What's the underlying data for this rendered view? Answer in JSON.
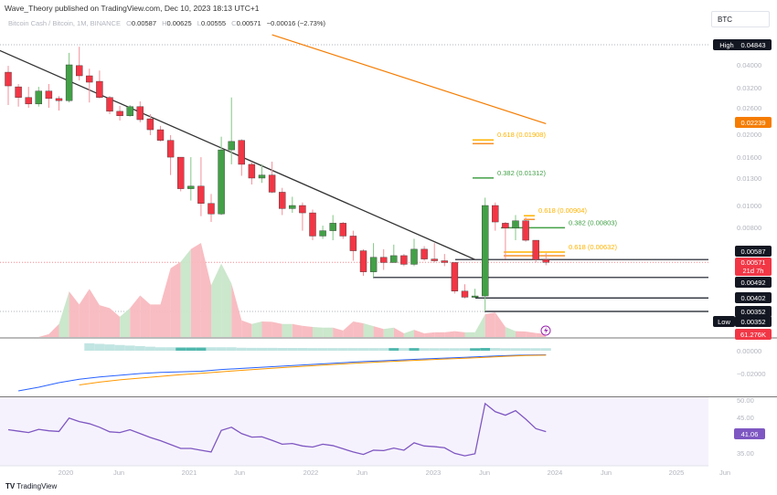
{
  "header": {
    "publisher": "Wave_Theory published on TradingView.com, Dec 10, 2023 18:13 UTC+1",
    "symbol": "Bitcoin Cash / Bitcoin, 1M, BINANCE",
    "open_key": "O",
    "open": "0.00587",
    "high_key": "H",
    "high": "0.00625",
    "low_key": "L",
    "low": "0.00555",
    "close_key": "C",
    "close": "0.00571",
    "change": "−0.00016 (−2.73%)"
  },
  "currency": "BTC",
  "footer": {
    "logo": "TradingView"
  },
  "colors": {
    "up": "#43a047",
    "down": "#f23645",
    "ma": "#f57c00",
    "fib_orange": "#ffb300",
    "fib_green": "#43a047",
    "rsi": "#7e57c2",
    "macd": "#2962ff",
    "signal": "#ff9800",
    "hist": "#b2dfdb",
    "hist_dark": "#26a69a"
  },
  "chart_data": {
    "type": "candlestick",
    "scale": "log",
    "dates": [
      "2019-07",
      "2019-08",
      "2019-09",
      "2019-10",
      "2019-11",
      "2019-12",
      "2020-01",
      "2020-02",
      "2020-03",
      "2020-04",
      "2020-05",
      "2020-06",
      "2020-07",
      "2020-08",
      "2020-09",
      "2020-10",
      "2020-11",
      "2020-12",
      "2021-01",
      "2021-02",
      "2021-03",
      "2021-04",
      "2021-05",
      "2021-06",
      "2021-07",
      "2021-08",
      "2021-09",
      "2021-10",
      "2021-11",
      "2021-12",
      "2022-01",
      "2022-02",
      "2022-03",
      "2022-04",
      "2022-05",
      "2022-06",
      "2022-07",
      "2022-08",
      "2022-09",
      "2022-10",
      "2022-11",
      "2022-12",
      "2023-01",
      "2023-02",
      "2023-03",
      "2023-04",
      "2023-05",
      "2023-06",
      "2023-07",
      "2023-08",
      "2023-09",
      "2023-10",
      "2023-11",
      "2023-12"
    ],
    "ohlc": [
      [
        0.0372,
        0.0396,
        0.0269,
        0.0325
      ],
      [
        0.0322,
        0.0331,
        0.0265,
        0.029
      ],
      [
        0.029,
        0.0322,
        0.0262,
        0.0272
      ],
      [
        0.0272,
        0.0322,
        0.0265,
        0.0309
      ],
      [
        0.0309,
        0.0331,
        0.0262,
        0.0287
      ],
      [
        0.0287,
        0.0294,
        0.0255,
        0.0281
      ],
      [
        0.0281,
        0.045,
        0.0276,
        0.04
      ],
      [
        0.0397,
        0.0478,
        0.0343,
        0.0359
      ],
      [
        0.0359,
        0.0385,
        0.0276,
        0.0337
      ],
      [
        0.034,
        0.0378,
        0.0287,
        0.029
      ],
      [
        0.029,
        0.0294,
        0.0246,
        0.0253
      ],
      [
        0.0253,
        0.0267,
        0.0231,
        0.0242
      ],
      [
        0.0242,
        0.0269,
        0.024,
        0.0265
      ],
      [
        0.0265,
        0.0279,
        0.0227,
        0.0233
      ],
      [
        0.0235,
        0.0246,
        0.02,
        0.0211
      ],
      [
        0.0211,
        0.0219,
        0.0188,
        0.019
      ],
      [
        0.019,
        0.02,
        0.0135,
        0.0161
      ],
      [
        0.0161,
        0.0161,
        0.0115,
        0.0118
      ],
      [
        0.0118,
        0.0161,
        0.0105,
        0.0121
      ],
      [
        0.0121,
        0.0161,
        0.009,
        0.0102
      ],
      [
        0.0102,
        0.0112,
        0.0085,
        0.0092
      ],
      [
        0.0092,
        0.0197,
        0.0091,
        0.0173
      ],
      [
        0.0173,
        0.029,
        0.015,
        0.0188
      ],
      [
        0.019,
        0.0192,
        0.0134,
        0.015
      ],
      [
        0.015,
        0.0154,
        0.0123,
        0.0131
      ],
      [
        0.0131,
        0.015,
        0.0125,
        0.0135
      ],
      [
        0.0135,
        0.0154,
        0.0113,
        0.0114
      ],
      [
        0.0114,
        0.0119,
        0.0091,
        0.0097
      ],
      [
        0.0097,
        0.0109,
        0.0093,
        0.01
      ],
      [
        0.01,
        0.0103,
        0.0078,
        0.0093
      ],
      [
        0.0093,
        0.0096,
        0.0071,
        0.0074
      ],
      [
        0.0074,
        0.0082,
        0.0072,
        0.0078
      ],
      [
        0.0078,
        0.0091,
        0.0071,
        0.0084
      ],
      [
        0.0084,
        0.0085,
        0.0072,
        0.0074
      ],
      [
        0.0074,
        0.0078,
        0.0058,
        0.0064
      ],
      [
        0.0064,
        0.0065,
        0.005,
        0.0052
      ],
      [
        0.0052,
        0.0069,
        0.00492,
        0.006
      ],
      [
        0.006,
        0.0065,
        0.0053,
        0.0057
      ],
      [
        0.0057,
        0.0068,
        0.0057,
        0.0061
      ],
      [
        0.0061,
        0.0062,
        0.0055,
        0.0056
      ],
      [
        0.0056,
        0.0072,
        0.0055,
        0.0065
      ],
      [
        0.0065,
        0.0067,
        0.0058,
        0.0059
      ],
      [
        0.0059,
        0.0069,
        0.0057,
        0.0058
      ],
      [
        0.0058,
        0.0062,
        0.0055,
        0.0057
      ],
      [
        0.0057,
        0.0057,
        0.0042,
        0.0043
      ],
      [
        0.0043,
        0.0046,
        0.004,
        0.00405
      ],
      [
        0.00405,
        0.0044,
        0.00402,
        0.0041
      ],
      [
        0.0041,
        0.0108,
        0.00352,
        0.01
      ],
      [
        0.01,
        0.0103,
        0.0078,
        0.0085
      ],
      [
        0.0084,
        0.0085,
        0.0059,
        0.008
      ],
      [
        0.008,
        0.0091,
        0.0071,
        0.0086
      ],
      [
        0.0086,
        0.0089,
        0.007,
        0.0071
      ],
      [
        0.0071,
        0.0071,
        0.0057,
        0.00587
      ],
      [
        0.00587,
        0.00625,
        0.00555,
        0.00571
      ]
    ],
    "volume_k": [
      0,
      0,
      0,
      0,
      60,
      273,
      957,
      683,
      1010,
      668,
      607,
      425,
      607,
      873,
      683,
      683,
      1442,
      1579,
      1845,
      1974,
      1086,
      1541,
      1124,
      349,
      273,
      326,
      319,
      273,
      273,
      235,
      212,
      197,
      197,
      137,
      326,
      288,
      228,
      167,
      197,
      76,
      152,
      76,
      99,
      99,
      121,
      99,
      99,
      478,
      516,
      212,
      121,
      114,
      84,
      61.276
    ],
    "rsi": [
      41.6,
      41.2,
      40.8,
      41.7,
      41.3,
      41.1,
      44.9,
      43.9,
      43.3,
      42.3,
      41.0,
      40.8,
      41.6,
      40.5,
      39.4,
      38.5,
      37.4,
      36.3,
      36.3,
      35.8,
      35.3,
      41.4,
      42.3,
      40.5,
      39.5,
      39.6,
      38.6,
      37.5,
      37.7,
      37.0,
      36.7,
      37.5,
      37.1,
      36.2,
      35.3,
      34.6,
      35.8,
      35.7,
      36.4,
      35.8,
      37.9,
      37.0,
      36.8,
      36.5,
      34.9,
      34.2,
      34.8,
      49.0,
      46.7,
      45.7,
      47.0,
      44.6,
      41.9,
      41.06
    ],
    "macd": {
      "dates": [
        "2019-08",
        "2019-10",
        "2019-12",
        "2020-02",
        "2020-04",
        "2020-06",
        "2020-08",
        "2020-10",
        "2020-12",
        "2021-02",
        "2021-04",
        "2021-06",
        "2021-08",
        "2021-10",
        "2021-12",
        "2022-02",
        "2022-04",
        "2022-06",
        "2022-08",
        "2022-10",
        "2022-12",
        "2023-02",
        "2023-04",
        "2023-06",
        "2023-08",
        "2023-10",
        "2023-12"
      ],
      "macd": [
        -0.0352,
        -0.032,
        -0.028,
        -0.025,
        -0.023,
        -0.0215,
        -0.02,
        -0.019,
        -0.0185,
        -0.018,
        -0.0165,
        -0.0155,
        -0.0145,
        -0.0135,
        -0.0125,
        -0.0115,
        -0.0105,
        -0.0095,
        -0.0088,
        -0.008,
        -0.0072,
        -0.0065,
        -0.0058,
        -0.005,
        -0.0043,
        -0.0038,
        -0.0036
      ],
      "signal": [
        null,
        null,
        null,
        -0.03,
        -0.0275,
        -0.0255,
        -0.024,
        -0.0225,
        -0.021,
        -0.0198,
        -0.0185,
        -0.0172,
        -0.016,
        -0.0148,
        -0.0137,
        -0.0126,
        -0.0116,
        -0.0106,
        -0.0097,
        -0.0089,
        -0.0081,
        -0.0073,
        -0.0066,
        -0.0058,
        -0.0049,
        -0.0042,
        -0.0039
      ],
      "histogram_start": "2020-03",
      "histogram": [
        0.0065,
        0.006,
        0.0055,
        0.005,
        0.0045,
        0.004,
        0.0035,
        0.003,
        0.003,
        0.0028,
        0.0028,
        0.0028,
        0.003,
        0.003,
        0.003,
        0.0026,
        0.0025,
        0.0025,
        0.0025,
        0.0024,
        0.0024,
        0.0024,
        0.0023,
        0.0023,
        0.0023,
        0.0023,
        0.0023,
        0.0023,
        0.0023,
        0.0023,
        0.0023,
        0.0023,
        0.0023,
        0.0022,
        0.0022,
        0.0022,
        0.0022,
        0.0022,
        0.0022,
        0.0024,
        0.0024,
        0.0022,
        0.0022,
        0.0022,
        0.0022,
        0.0022
      ],
      "histogram_dark": [
        "2020-12",
        "2021-01",
        "2021-02",
        "2022-09",
        "2022-11",
        "2023-05",
        "2023-06"
      ]
    },
    "trendline": {
      "from": [
        "2019-06",
        0.0464
      ],
      "to": [
        "2023-05",
        0.00587
      ]
    },
    "moving_average": {
      "from": [
        "2021-09",
        0.0538
      ],
      "to": [
        "2023-12",
        0.02239
      ]
    },
    "fib_levels": [
      {
        "label": "0.618 (0.01908)",
        "value": 0.01908,
        "color": "orange"
      },
      {
        "label": "0.382 (0.01312)",
        "value": 0.01312,
        "color": "green"
      },
      {
        "label": "0.618 (0.00904)",
        "value": 0.00904,
        "color": "orange"
      },
      {
        "label": "0.382 (0.00803)",
        "value": 0.00803,
        "color": "green"
      },
      {
        "label": "0.618 (0.00632)",
        "value": 0.00632,
        "color": "orange"
      }
    ],
    "support_lines": [
      0.00587,
      0.00492,
      0.00402,
      0.00352
    ],
    "price_axis": [
      "0.04000",
      "0.03200",
      "0.02600",
      "0.02000",
      "0.01600",
      "0.01300",
      "0.01000",
      "0.00800"
    ],
    "price_tags": {
      "high_label": "High",
      "high": "0.04843",
      "ma": "0.02239",
      "s1": "0.00587",
      "close": "0.00571",
      "countdown": "21d 7h",
      "s2": "0.00492",
      "s3": "0.00402",
      "s4": "0.00352",
      "low_label": "Low",
      "low": "0.00352",
      "volume": "61.276K"
    },
    "macd_axis": [
      "0.00000",
      "−0.02000"
    ],
    "rsi_axis": [
      "50.00",
      "45.00",
      "35.00"
    ],
    "rsi_value": "41.06",
    "x_axis": [
      "2020",
      "Jun",
      "2021",
      "Jun",
      "2022",
      "Jun",
      "2023",
      "Jun",
      "2024",
      "Jun",
      "2025",
      "Jun"
    ]
  }
}
